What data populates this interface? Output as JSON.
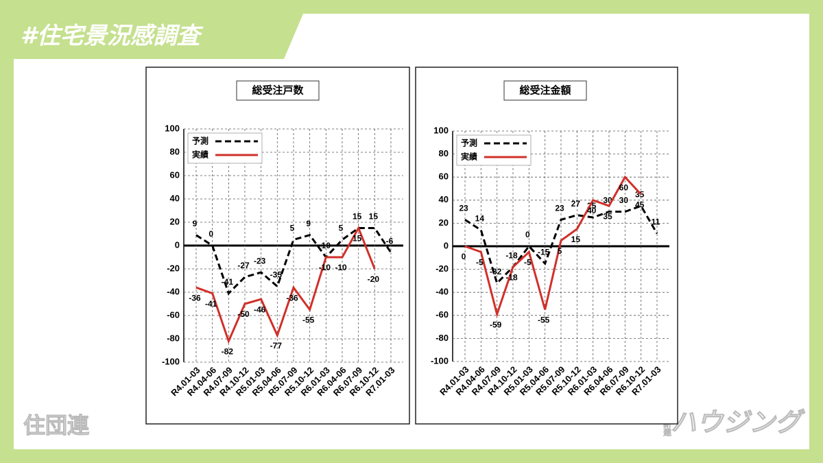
{
  "header": {
    "title": "#住宅景況感調査",
    "source": "住団連",
    "logo_small": "新建",
    "logo": "ハウジング"
  },
  "chart_data": [
    {
      "type": "line",
      "title": "総受注戸数",
      "categories": [
        "R4.01-03",
        "R4.04-06",
        "R4.07-09",
        "R4.10-12",
        "R5.01-03",
        "R5.04-06",
        "R5.07-09",
        "R5.10-12",
        "R6.01-03",
        "R6.04-06",
        "R6.07-09",
        "R6.10-12",
        "R7.01-03"
      ],
      "series": [
        {
          "name": "予測",
          "color": "#000000",
          "style": "dashed",
          "values": [
            9,
            0,
            -41,
            -27,
            -23,
            -35,
            5,
            9,
            -10,
            5,
            15,
            15,
            -6
          ]
        },
        {
          "name": "実績",
          "color": "#d0302a",
          "style": "solid",
          "values": [
            -36,
            -41,
            -82,
            -50,
            -46,
            -77,
            -36,
            -55,
            -10,
            -10,
            15,
            -20,
            null
          ]
        }
      ],
      "ylim": [
        -100,
        100
      ],
      "yticks": [
        -100,
        -80,
        -60,
        -40,
        -20,
        0,
        20,
        40,
        60,
        80,
        100
      ],
      "grid": true,
      "legend": "top-left"
    },
    {
      "type": "line",
      "title": "総受注金額",
      "categories": [
        "R4.01-03",
        "R4.04-06",
        "R4.07-09",
        "R4.10-12",
        "R5.01-03",
        "R5.04-06",
        "R5.07-09",
        "R5.10-12",
        "R6.01-03",
        "R6.04-06",
        "R6.07-09",
        "R6.10-12",
        "R7.01-03"
      ],
      "series": [
        {
          "name": "予測",
          "color": "#000000",
          "style": "dashed",
          "values": [
            23,
            14,
            -32,
            -18,
            0,
            -15,
            23,
            27,
            25,
            30,
            30,
            35,
            11
          ]
        },
        {
          "name": "実績",
          "color": "#d0302a",
          "style": "solid",
          "values": [
            0,
            -5,
            -59,
            -18,
            -5,
            -55,
            5,
            15,
            40,
            35,
            60,
            45,
            null
          ]
        }
      ],
      "ylim": [
        -100,
        100
      ],
      "yticks": [
        -100,
        -80,
        -60,
        -40,
        -20,
        0,
        20,
        40,
        60,
        80,
        100
      ],
      "grid": true,
      "legend": "top-left"
    }
  ]
}
